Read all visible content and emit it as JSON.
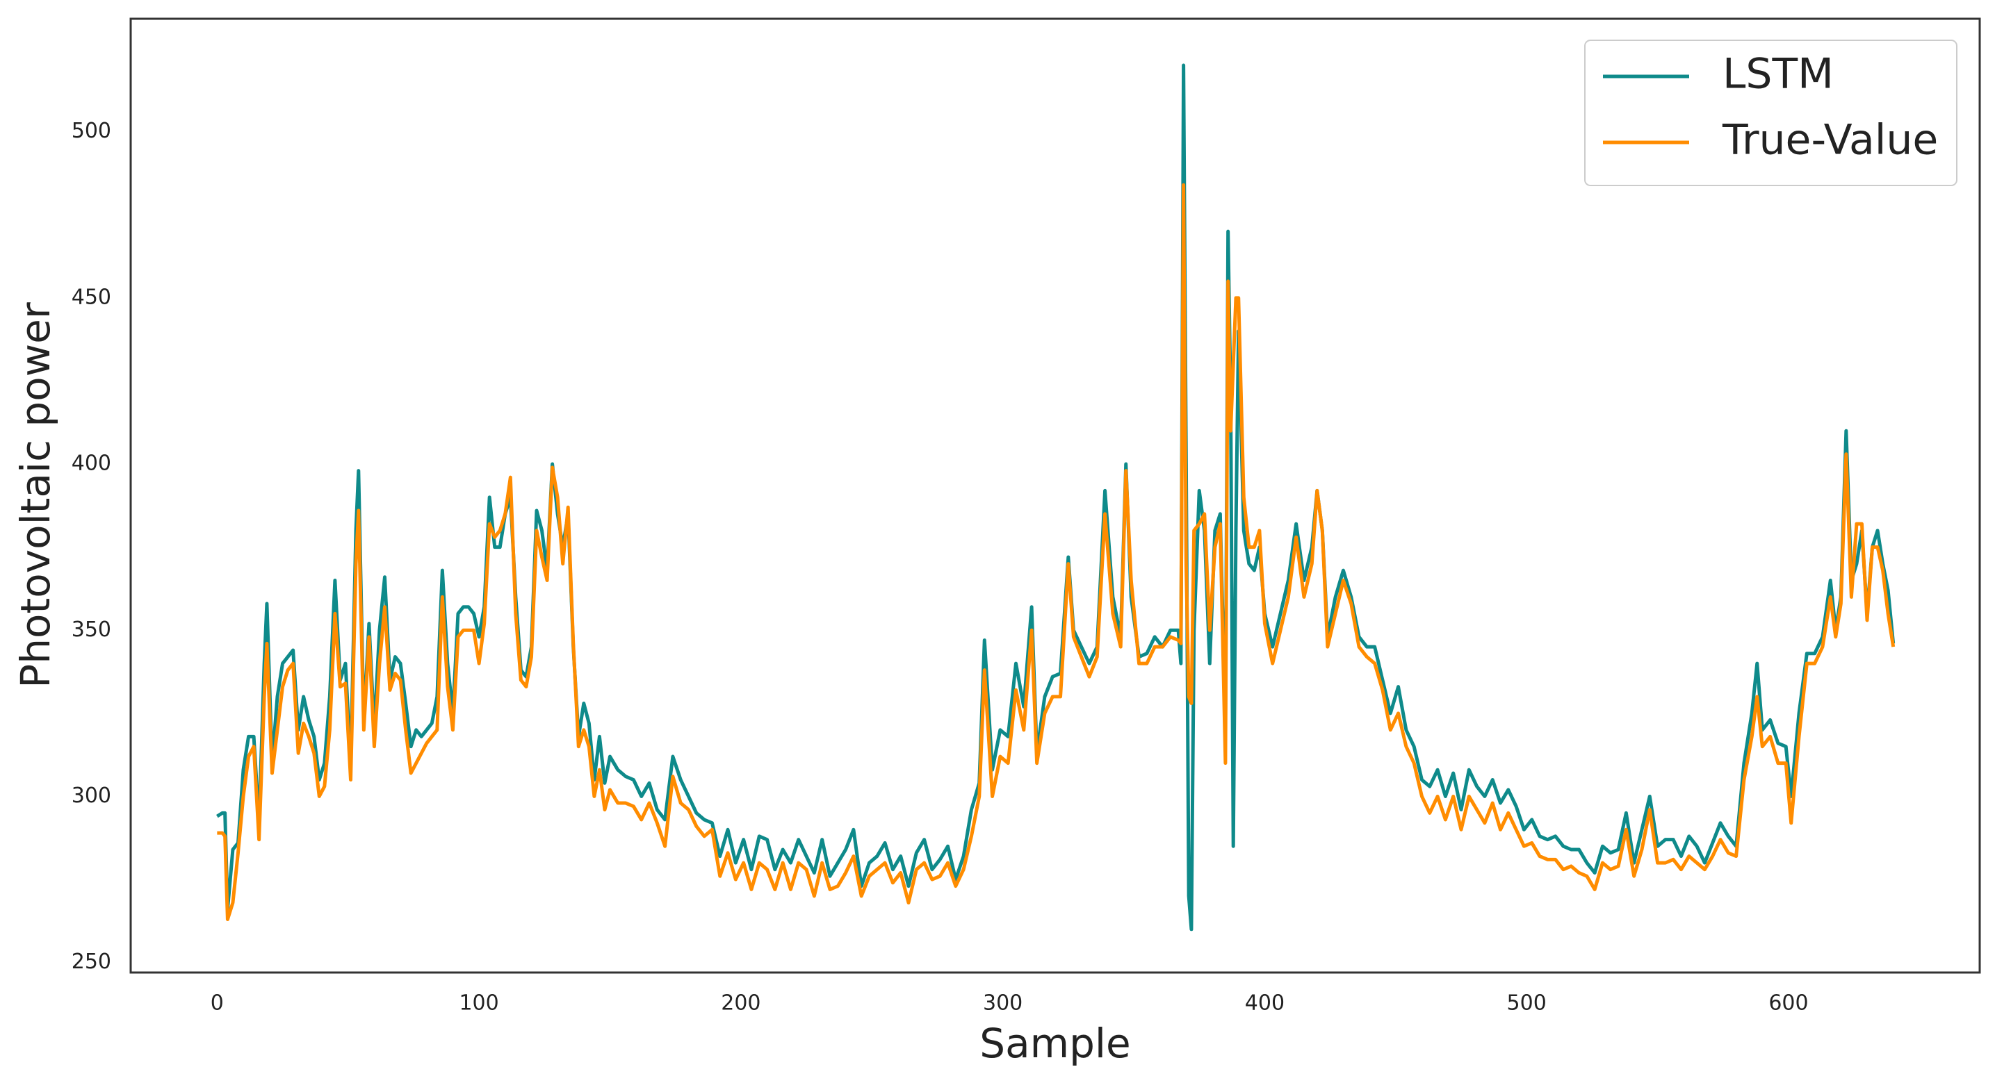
{
  "chart_data": {
    "type": "line",
    "xlabel": "Sample",
    "ylabel": "Photovoltaic power",
    "xlim": [
      -33,
      673
    ],
    "ylim": [
      247,
      534
    ],
    "xticks": [
      0,
      100,
      200,
      300,
      400,
      500,
      600
    ],
    "yticks": [
      250,
      300,
      350,
      400,
      450,
      500
    ],
    "grid": false,
    "legend": "upper right",
    "x": [
      0,
      2,
      3,
      4,
      6,
      8,
      10,
      12,
      14,
      16,
      18,
      19,
      21,
      23,
      25,
      27,
      29,
      31,
      33,
      35,
      37,
      39,
      41,
      43,
      45,
      47,
      49,
      51,
      53,
      54,
      56,
      58,
      60,
      62,
      64,
      66,
      68,
      70,
      72,
      74,
      76,
      78,
      80,
      82,
      84,
      86,
      88,
      90,
      92,
      94,
      96,
      98,
      100,
      102,
      104,
      106,
      108,
      110,
      112,
      114,
      116,
      118,
      120,
      122,
      124,
      126,
      128,
      130,
      132,
      134,
      136,
      138,
      140,
      142,
      144,
      146,
      148,
      150,
      153,
      156,
      159,
      162,
      165,
      168,
      171,
      174,
      177,
      180,
      183,
      186,
      189,
      192,
      195,
      198,
      201,
      204,
      207,
      210,
      213,
      216,
      219,
      222,
      225,
      228,
      231,
      234,
      237,
      240,
      243,
      246,
      249,
      252,
      255,
      258,
      261,
      264,
      267,
      270,
      273,
      276,
      279,
      282,
      285,
      288,
      291,
      293,
      296,
      299,
      302,
      305,
      308,
      311,
      313,
      316,
      319,
      322,
      325,
      327,
      330,
      333,
      336,
      339,
      342,
      345,
      347,
      349,
      352,
      355,
      358,
      361,
      364,
      367,
      368,
      369,
      370,
      371,
      372,
      373,
      375,
      377,
      379,
      381,
      383,
      385,
      386,
      387,
      388,
      389,
      390,
      392,
      394,
      396,
      398,
      400,
      403,
      406,
      409,
      412,
      415,
      418,
      420,
      422,
      424,
      427,
      430,
      433,
      436,
      439,
      442,
      445,
      448,
      451,
      454,
      457,
      460,
      463,
      466,
      469,
      472,
      475,
      478,
      481,
      484,
      487,
      490,
      493,
      496,
      499,
      502,
      505,
      508,
      511,
      514,
      517,
      520,
      523,
      526,
      529,
      532,
      535,
      538,
      541,
      544,
      547,
      550,
      553,
      556,
      559,
      562,
      565,
      568,
      571,
      574,
      577,
      580,
      583,
      586,
      588,
      590,
      593,
      596,
      599,
      601,
      604,
      607,
      610,
      613,
      616,
      618,
      620,
      622,
      624,
      626,
      628,
      630,
      632,
      634,
      636,
      638,
      640
    ],
    "series": [
      {
        "name": "LSTM",
        "color": "#0e8a8a",
        "values": [
          294,
          295,
          295,
          266,
          284,
          286,
          308,
          318,
          318,
          292,
          340,
          358,
          310,
          330,
          340,
          342,
          344,
          320,
          330,
          323,
          318,
          305,
          310,
          330,
          365,
          335,
          340,
          310,
          380,
          398,
          322,
          352,
          320,
          350,
          366,
          335,
          342,
          340,
          328,
          315,
          320,
          318,
          320,
          322,
          330,
          368,
          340,
          325,
          355,
          357,
          357,
          355,
          348,
          357,
          390,
          375,
          375,
          385,
          390,
          360,
          338,
          336,
          345,
          386,
          380,
          368,
          400,
          385,
          375,
          385,
          345,
          318,
          328,
          322,
          305,
          318,
          304,
          312,
          308,
          306,
          305,
          300,
          304,
          296,
          293,
          312,
          305,
          300,
          295,
          293,
          292,
          282,
          290,
          280,
          287,
          278,
          288,
          287,
          278,
          284,
          280,
          287,
          282,
          277,
          287,
          276,
          280,
          284,
          290,
          273,
          280,
          282,
          286,
          278,
          282,
          273,
          283,
          287,
          278,
          281,
          285,
          275,
          282,
          296,
          304,
          347,
          308,
          320,
          318,
          340,
          327,
          357,
          313,
          330,
          336,
          337,
          372,
          350,
          345,
          340,
          345,
          392,
          360,
          348,
          400,
          360,
          342,
          343,
          348,
          345,
          350,
          350,
          340,
          520,
          400,
          270,
          260,
          350,
          392,
          380,
          340,
          380,
          385,
          320,
          470,
          420,
          285,
          380,
          440,
          380,
          370,
          368,
          375,
          355,
          345,
          355,
          365,
          382,
          365,
          375,
          392,
          380,
          348,
          360,
          368,
          360,
          348,
          345,
          345,
          335,
          325,
          333,
          320,
          315,
          305,
          303,
          308,
          300,
          307,
          296,
          308,
          303,
          300,
          305,
          298,
          302,
          297,
          290,
          293,
          288,
          287,
          288,
          285,
          284,
          284,
          280,
          277,
          285,
          283,
          284,
          295,
          280,
          290,
          300,
          285,
          287,
          287,
          282,
          288,
          285,
          280,
          286,
          292,
          288,
          285,
          310,
          325,
          340,
          320,
          323,
          316,
          315,
          300,
          325,
          343,
          343,
          348,
          365,
          350,
          360,
          410,
          365,
          370,
          380,
          355,
          375,
          380,
          370,
          362,
          346
        ]
      },
      {
        "name": "True-Value",
        "color": "#ff8c00",
        "values": [
          289,
          289,
          288,
          263,
          268,
          283,
          300,
          312,
          315,
          287,
          330,
          346,
          307,
          320,
          333,
          338,
          340,
          313,
          322,
          318,
          313,
          300,
          303,
          320,
          355,
          333,
          334,
          305,
          370,
          386,
          320,
          348,
          315,
          340,
          357,
          332,
          337,
          335,
          320,
          307,
          310,
          313,
          316,
          318,
          320,
          360,
          333,
          320,
          348,
          350,
          350,
          350,
          340,
          352,
          382,
          378,
          380,
          385,
          396,
          355,
          335,
          333,
          342,
          380,
          372,
          365,
          399,
          390,
          370,
          387,
          346,
          315,
          320,
          315,
          300,
          308,
          296,
          302,
          298,
          298,
          297,
          293,
          298,
          292,
          285,
          306,
          298,
          296,
          291,
          288,
          290,
          276,
          283,
          275,
          280,
          272,
          280,
          278,
          272,
          280,
          272,
          280,
          278,
          270,
          280,
          272,
          273,
          277,
          282,
          270,
          276,
          278,
          280,
          274,
          277,
          268,
          278,
          280,
          275,
          276,
          280,
          273,
          278,
          288,
          300,
          338,
          300,
          312,
          310,
          332,
          320,
          350,
          310,
          325,
          330,
          330,
          370,
          348,
          342,
          336,
          342,
          385,
          355,
          345,
          398,
          365,
          340,
          340,
          345,
          345,
          348,
          347,
          346,
          484,
          370,
          330,
          328,
          380,
          382,
          385,
          350,
          375,
          382,
          310,
          455,
          410,
          430,
          450,
          450,
          390,
          375,
          375,
          380,
          352,
          340,
          350,
          360,
          378,
          360,
          370,
          392,
          380,
          345,
          355,
          365,
          358,
          345,
          342,
          340,
          332,
          320,
          325,
          315,
          310,
          300,
          295,
          300,
          293,
          300,
          290,
          300,
          296,
          292,
          298,
          290,
          295,
          290,
          285,
          286,
          282,
          281,
          281,
          278,
          279,
          277,
          276,
          272,
          280,
          278,
          279,
          290,
          276,
          284,
          296,
          280,
          280,
          281,
          278,
          282,
          280,
          278,
          282,
          287,
          283,
          282,
          305,
          318,
          330,
          315,
          318,
          310,
          310,
          292,
          318,
          340,
          340,
          345,
          360,
          348,
          358,
          403,
          360,
          382,
          382,
          353,
          375,
          375,
          368,
          355,
          345
        ]
      }
    ]
  }
}
